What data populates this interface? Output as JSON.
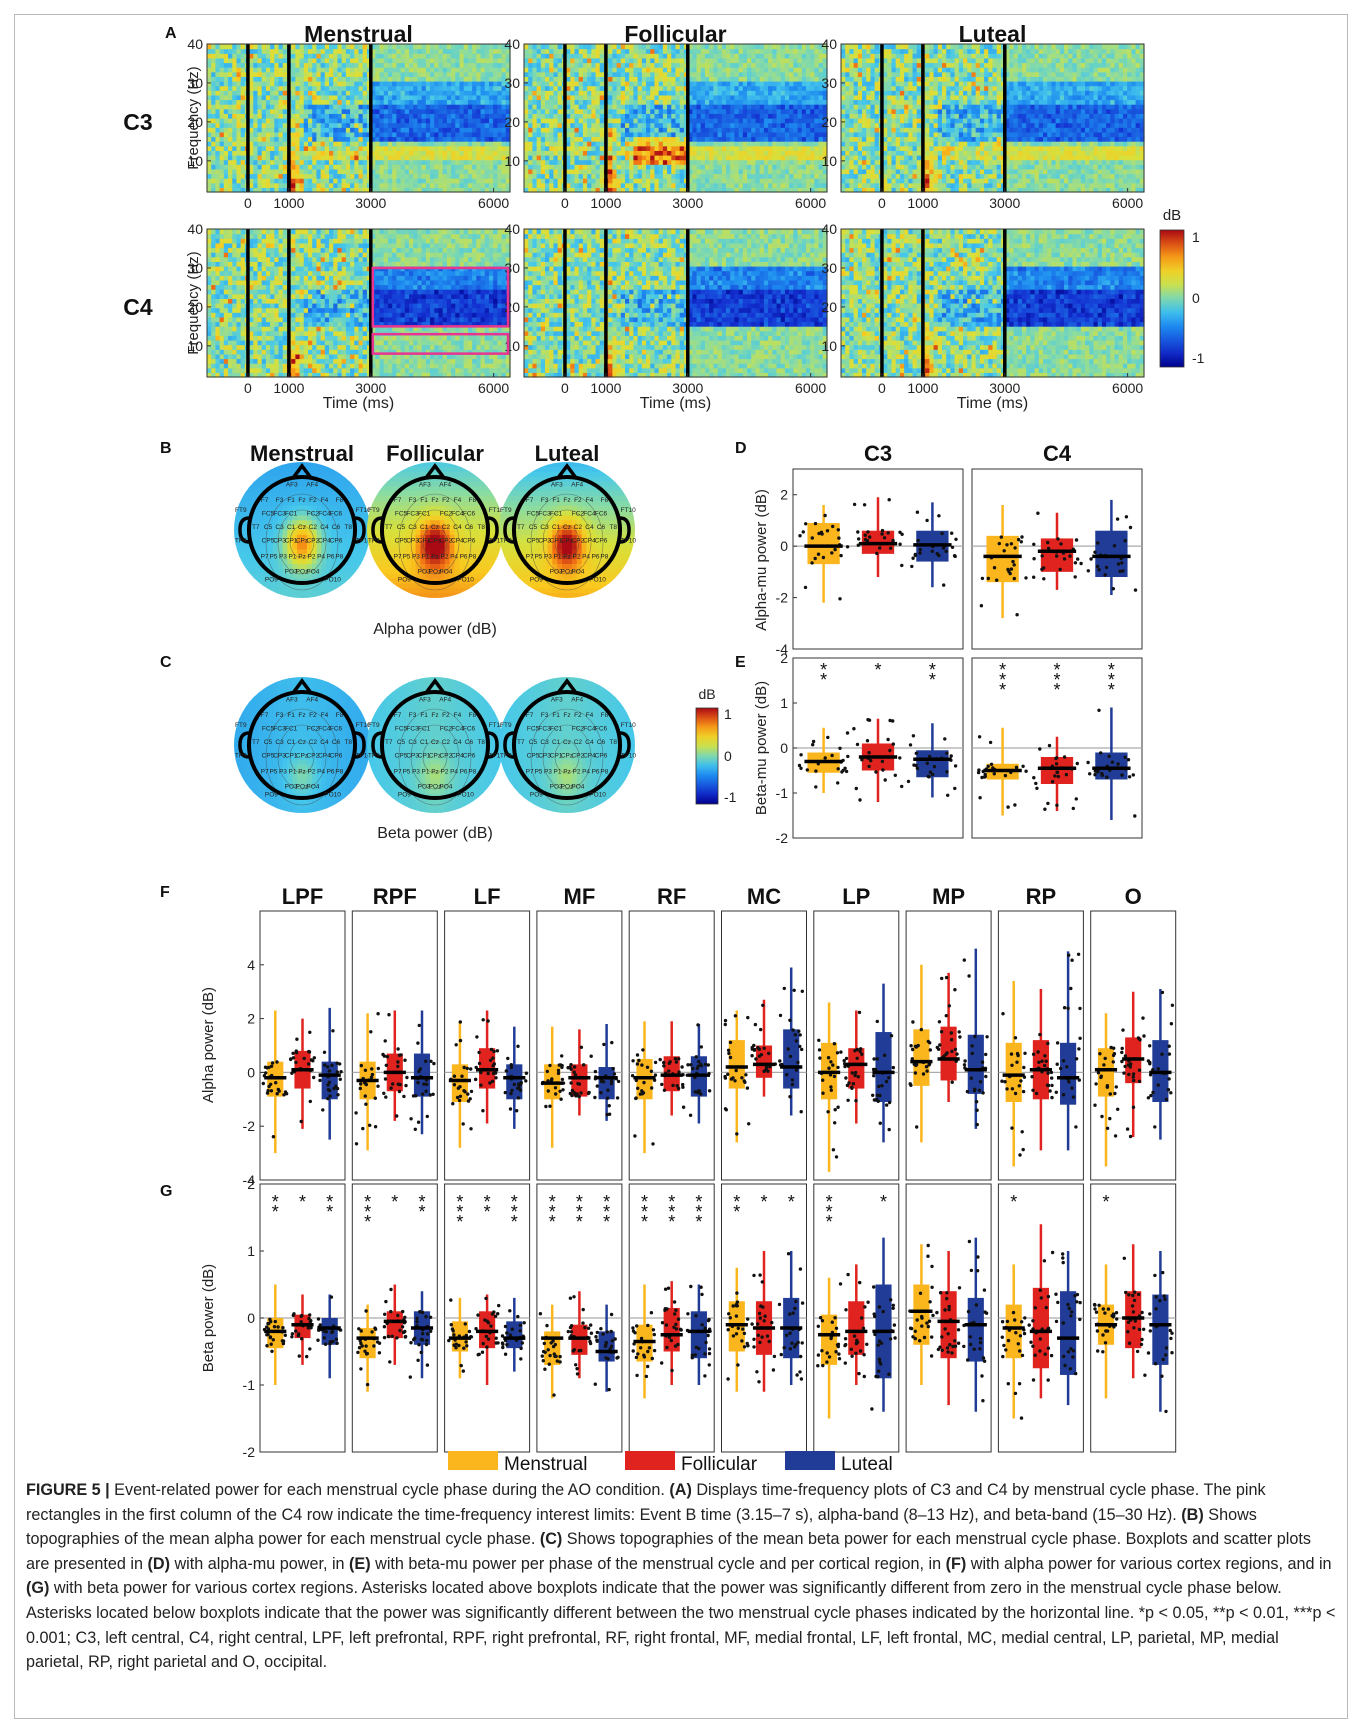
{
  "panel_letters": [
    "A",
    "B",
    "C",
    "D",
    "E",
    "F",
    "G"
  ],
  "panel_a": {
    "column_titles": [
      "Menstrual",
      "Follicular",
      "Luteal"
    ],
    "row_labels": [
      "C3",
      "C4"
    ],
    "ylabel": "Frequency (Hz)",
    "xlabel": "Time (ms)",
    "y_ticks": [
      "10",
      "20",
      "30",
      "40"
    ],
    "x_ticks": [
      "0",
      "1000",
      "3000",
      "6000"
    ],
    "colorbar": {
      "label": "dB",
      "ticks": [
        "1",
        "0",
        "-1"
      ]
    }
  },
  "panel_b": {
    "column_titles": [
      "Menstrual",
      "Follicular",
      "Luteal"
    ],
    "caption": "Alpha power (dB)"
  },
  "panel_c": {
    "caption": "Beta power (dB)",
    "colorbar": {
      "label": "dB",
      "ticks": [
        "1",
        "0",
        "-1"
      ]
    }
  },
  "electrode_labels": [
    "AF3",
    "AF4",
    "F7",
    "F3",
    "F1",
    "Fz",
    "F2",
    "F4",
    "F8",
    "FT9",
    "FC5",
    "FC3",
    "FC1",
    "FC2",
    "FC4",
    "FC6",
    "FT10",
    "T7",
    "C5",
    "C3",
    "C1",
    "Cz",
    "C2",
    "C4",
    "C6",
    "T8",
    "TP9",
    "CP5",
    "CP3",
    "CP1",
    "CPz",
    "CP2",
    "CP4",
    "CP6",
    "TP10",
    "P7",
    "P5",
    "P3",
    "P1",
    "Pz",
    "P2",
    "P4",
    "P6",
    "P8",
    "PO9",
    "PO3",
    "POz",
    "PO4",
    "PO10"
  ],
  "panel_d": {
    "titles": [
      "C3",
      "C4"
    ],
    "ylabel": "Alpha-mu power (dB)",
    "y_ticks": [
      "2",
      "0",
      "-2",
      "-4"
    ],
    "box_stats": [
      [
        [
          -0.7,
          0,
          0.9,
          -2.2,
          1.6
        ],
        [
          -0.3,
          0.1,
          0.6,
          -1.2,
          1.9
        ],
        [
          -0.6,
          0.05,
          0.6,
          -1.6,
          1.7
        ]
      ],
      [
        [
          -1.4,
          -0.4,
          0.4,
          -2.8,
          1.6
        ],
        [
          -1.0,
          -0.2,
          0.3,
          -1.7,
          1.3
        ],
        [
          -1.2,
          -0.4,
          0.6,
          -1.9,
          1.8
        ]
      ]
    ]
  },
  "panel_e": {
    "ylabel": "Beta-mu power (dB)",
    "y_ticks": [
      "2",
      "1",
      "0",
      "-1",
      "-2"
    ],
    "stars": [
      [
        "**",
        "*",
        "**"
      ],
      [
        "***",
        "***",
        "***"
      ]
    ],
    "box_stats": [
      [
        [
          -0.55,
          -0.3,
          -0.1,
          -1.0,
          0.45
        ],
        [
          -0.5,
          -0.2,
          0.1,
          -1.2,
          0.65
        ],
        [
          -0.65,
          -0.25,
          -0.05,
          -1.1,
          0.55
        ]
      ],
      [
        [
          -0.7,
          -0.5,
          -0.35,
          -1.5,
          0.45
        ],
        [
          -0.8,
          -0.45,
          -0.2,
          -1.4,
          0.25
        ],
        [
          -0.7,
          -0.45,
          -0.1,
          -1.6,
          0.9
        ]
      ]
    ]
  },
  "panel_f": {
    "regions": [
      "LPF",
      "RPF",
      "LF",
      "MF",
      "RF",
      "MC",
      "LP",
      "MP",
      "RP",
      "O"
    ],
    "ylabel": "Alpha power (dB)",
    "y_ticks": [
      "4",
      "2",
      "0",
      "-2",
      "-4"
    ],
    "box_stats": [
      [
        [
          -0.9,
          -0.2,
          0.4,
          -3.0,
          2.3
        ],
        [
          -0.6,
          0.1,
          0.8,
          -2.1,
          2.0
        ],
        [
          -1.0,
          -0.1,
          0.4,
          -2.5,
          2.4
        ]
      ],
      [
        [
          -1.0,
          -0.3,
          0.4,
          -2.9,
          2.2
        ],
        [
          -0.7,
          0,
          0.7,
          -1.8,
          2.3
        ],
        [
          -0.9,
          -0.2,
          0.7,
          -2.3,
          2.3
        ]
      ],
      [
        [
          -1.1,
          -0.3,
          0.3,
          -2.8,
          1.9
        ],
        [
          -0.6,
          0.1,
          0.9,
          -1.9,
          2.3
        ],
        [
          -1.0,
          -0.2,
          0.3,
          -2.1,
          1.7
        ]
      ],
      [
        [
          -1.0,
          -0.4,
          0.3,
          -2.8,
          1.7
        ],
        [
          -0.9,
          -0.2,
          0.3,
          -1.6,
          1.6
        ],
        [
          -1.0,
          -0.2,
          0.2,
          -1.8,
          1.8
        ]
      ],
      [
        [
          -1.0,
          -0.2,
          0.5,
          -3.0,
          1.9
        ],
        [
          -0.7,
          -0.1,
          0.6,
          -1.6,
          1.9
        ],
        [
          -0.9,
          -0.1,
          0.6,
          -1.9,
          1.8
        ]
      ],
      [
        [
          -0.6,
          0.2,
          1.2,
          -2.6,
          2.3
        ],
        [
          -0.2,
          0.3,
          1.0,
          -0.9,
          2.7
        ],
        [
          -0.6,
          0.2,
          1.6,
          -1.6,
          3.9
        ]
      ],
      [
        [
          -1.0,
          0,
          1.1,
          -3.7,
          2.6
        ],
        [
          -0.6,
          0.3,
          0.9,
          -1.9,
          2.3
        ],
        [
          -1.1,
          0,
          1.5,
          -2.6,
          3.3
        ]
      ],
      [
        [
          -0.5,
          0.4,
          1.6,
          -2.6,
          4.0
        ],
        [
          -0.3,
          0.5,
          1.7,
          -1.1,
          3.7
        ],
        [
          -0.8,
          0.1,
          1.4,
          -2.1,
          4.6
        ]
      ],
      [
        [
          -1.1,
          -0.1,
          1.1,
          -3.5,
          3.4
        ],
        [
          -1.0,
          0.1,
          1.2,
          -2.9,
          3.1
        ],
        [
          -1.2,
          -0.2,
          1.1,
          -2.9,
          4.5
        ]
      ],
      [
        [
          -0.9,
          0.1,
          0.9,
          -3.5,
          2.2
        ],
        [
          -0.4,
          0.5,
          1.3,
          -2.4,
          3.0
        ],
        [
          -1.1,
          0,
          1.2,
          -2.5,
          3.1
        ]
      ]
    ]
  },
  "panel_g": {
    "ylabel": "Beta power (dB)",
    "y_ticks": [
      "2",
      "1",
      "0",
      "-1",
      "-2"
    ],
    "stars": [
      [
        "**",
        "*",
        "**"
      ],
      [
        "***",
        "*",
        "**"
      ],
      [
        "***",
        "**",
        "***"
      ],
      [
        "***",
        "***",
        "***"
      ],
      [
        "***",
        "***",
        "***"
      ],
      [
        "**",
        "*",
        "*"
      ],
      [
        "***",
        "",
        "*"
      ],
      [
        "",
        "",
        ""
      ],
      [
        "*",
        "",
        ""
      ],
      [
        "*",
        "",
        ""
      ]
    ],
    "box_stats": [
      [
        [
          -0.45,
          -0.2,
          0,
          -1.0,
          0.5
        ],
        [
          -0.3,
          -0.1,
          0.05,
          -0.7,
          0.35
        ],
        [
          -0.4,
          -0.15,
          0,
          -0.9,
          0.35
        ]
      ],
      [
        [
          -0.6,
          -0.3,
          -0.15,
          -1.1,
          0.2
        ],
        [
          -0.3,
          -0.05,
          0.1,
          -0.7,
          0.5
        ],
        [
          -0.4,
          -0.15,
          0.1,
          -0.9,
          0.4
        ]
      ],
      [
        [
          -0.5,
          -0.3,
          -0.05,
          -0.9,
          0.3
        ],
        [
          -0.45,
          -0.2,
          0.1,
          -1.0,
          0.35
        ],
        [
          -0.45,
          -0.3,
          -0.05,
          -0.8,
          0.3
        ]
      ],
      [
        [
          -0.7,
          -0.3,
          -0.2,
          -1.2,
          0.2
        ],
        [
          -0.55,
          -0.3,
          -0.1,
          -0.9,
          0.4
        ],
        [
          -0.65,
          -0.5,
          -0.2,
          -1.1,
          0.2
        ]
      ],
      [
        [
          -0.65,
          -0.35,
          -0.1,
          -1.2,
          0.5
        ],
        [
          -0.5,
          -0.25,
          0.15,
          -1.0,
          0.55
        ],
        [
          -0.6,
          -0.2,
          0.1,
          -1.0,
          0.5
        ]
      ],
      [
        [
          -0.5,
          -0.1,
          0.25,
          -1.1,
          0.75
        ],
        [
          -0.55,
          -0.15,
          0.25,
          -1.1,
          1.0
        ],
        [
          -0.6,
          -0.15,
          0.3,
          -1.0,
          1.0
        ]
      ],
      [
        [
          -0.7,
          -0.25,
          0.05,
          -1.5,
          0.6
        ],
        [
          -0.55,
          -0.2,
          0.25,
          -1.0,
          0.8
        ],
        [
          -0.9,
          -0.2,
          0.5,
          -1.4,
          1.2
        ]
      ],
      [
        [
          -0.4,
          0.1,
          0.5,
          -1.0,
          1.1
        ],
        [
          -0.6,
          -0.05,
          0.4,
          -1.3,
          1.0
        ],
        [
          -0.65,
          -0.1,
          0.3,
          -1.4,
          1.2
        ]
      ],
      [
        [
          -0.6,
          -0.15,
          0.2,
          -1.5,
          0.8
        ],
        [
          -0.75,
          -0.2,
          0.45,
          -1.2,
          1.4
        ],
        [
          -0.85,
          -0.3,
          0.4,
          -1.3,
          1.0
        ]
      ],
      [
        [
          -0.4,
          -0.1,
          0.2,
          -1.2,
          0.8
        ],
        [
          -0.45,
          0,
          0.4,
          -0.9,
          1.1
        ],
        [
          -0.7,
          -0.1,
          0.35,
          -1.4,
          1.0
        ]
      ]
    ]
  },
  "legend": [
    {
      "label": "Menstrual",
      "color": "#fbb61d"
    },
    {
      "label": "Follicular",
      "color": "#e0231e"
    },
    {
      "label": "Luteal",
      "color": "#213c96"
    }
  ],
  "caption": {
    "fig_label": "FIGURE 5 |",
    "t1": " Event-related power for each menstrual cycle phase during the AO condition. ",
    "r1": "(A)",
    "t2": " Displays time-frequency plots of C3 and C4 by menstrual cycle phase. The pink rectangles in the first column of the C4 row indicate the time-frequency interest limits: Event B time (3.15–7 s), alpha-band (8–13 Hz), and beta-band (15–30 Hz). ",
    "r2": "(B)",
    "t3": " Shows topographies of the mean alpha power for each menstrual cycle phase. ",
    "r3": "(C)",
    "t4": " Shows topographies of the mean beta power for each menstrual cycle phase. Boxplots and scatter plots are presented in ",
    "r4": "(D)",
    "t5": " with alpha-mu power, in ",
    "r5": "(E)",
    "t6": " with beta-mu power per phase of the menstrual cycle and per cortical region, in ",
    "r6": "(F)",
    "t7": " with alpha power for various cortex regions, and in ",
    "r7": "(G)",
    "t8": " with beta power for various cortex regions. Asterisks located above boxplots indicate that the power was significantly different from zero in the menstrual cycle phase below. Asterisks located below boxplots indicate that the power was significantly different between the two menstrual cycle phases indicated by the horizontal line. *p < 0.05, **p < 0.01, ***p < 0.001; C3, left central, C4, right central, LPF, left prefrontal, RPF, right prefrontal, RF, right frontal, MF, medial frontal, LF, left frontal, MC, medial central, LP, parietal, MP, medial parietal, RP, right parietal and O, occipital."
  }
}
